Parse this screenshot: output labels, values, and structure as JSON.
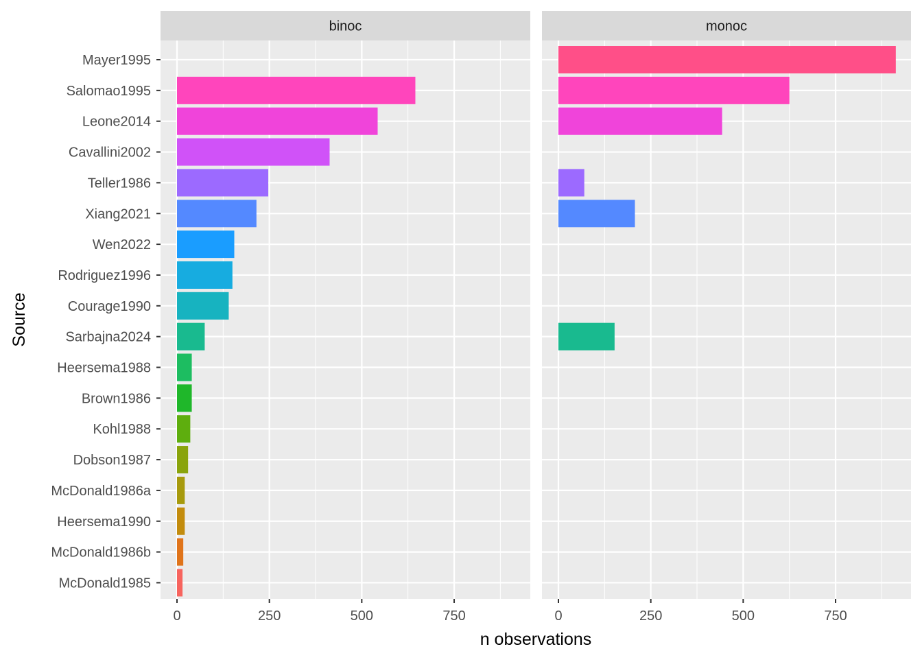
{
  "chart_data": {
    "type": "bar",
    "orientation": "horizontal",
    "facet_by": "eye",
    "xlabel": "n observations",
    "ylabel": "Source",
    "xlim": [
      0,
      930
    ],
    "x_ticks": [
      0,
      250,
      500,
      750
    ],
    "grid": true,
    "legend": "none",
    "categories": [
      "Mayer1995",
      "Salomao1995",
      "Leone2014",
      "Cavallini2002",
      "Teller1986",
      "Xiang2021",
      "Wen2022",
      "Rodriguez1996",
      "Courage1990",
      "Sarbajna2024",
      "Heersema1988",
      "Brown1986",
      "Kohl1988",
      "Dobson1987",
      "McDonald1986a",
      "Heersema1990",
      "McDonald1986b",
      "McDonald1985"
    ],
    "colors": [
      "#FF4F88",
      "#FF45BC",
      "#F044DA",
      "#D052F8",
      "#9C6AFF",
      "#5489FF",
      "#1A9DFF",
      "#17ACE0",
      "#17B3C0",
      "#19BA8F",
      "#1DBD61",
      "#1FB72A",
      "#5EAE0E",
      "#8AA40C",
      "#A79A0D",
      "#C38C0D",
      "#E0741A",
      "#F7645E"
    ],
    "series": [
      {
        "name": "binoc",
        "values": [
          null,
          645,
          543,
          413,
          247,
          215,
          155,
          150,
          140,
          75,
          40,
          40,
          36,
          30,
          21,
          21,
          17,
          15
        ]
      },
      {
        "name": "monoc",
        "values": [
          913,
          625,
          443,
          null,
          70,
          207,
          null,
          null,
          null,
          152,
          null,
          null,
          null,
          null,
          null,
          null,
          null,
          null
        ]
      }
    ]
  }
}
